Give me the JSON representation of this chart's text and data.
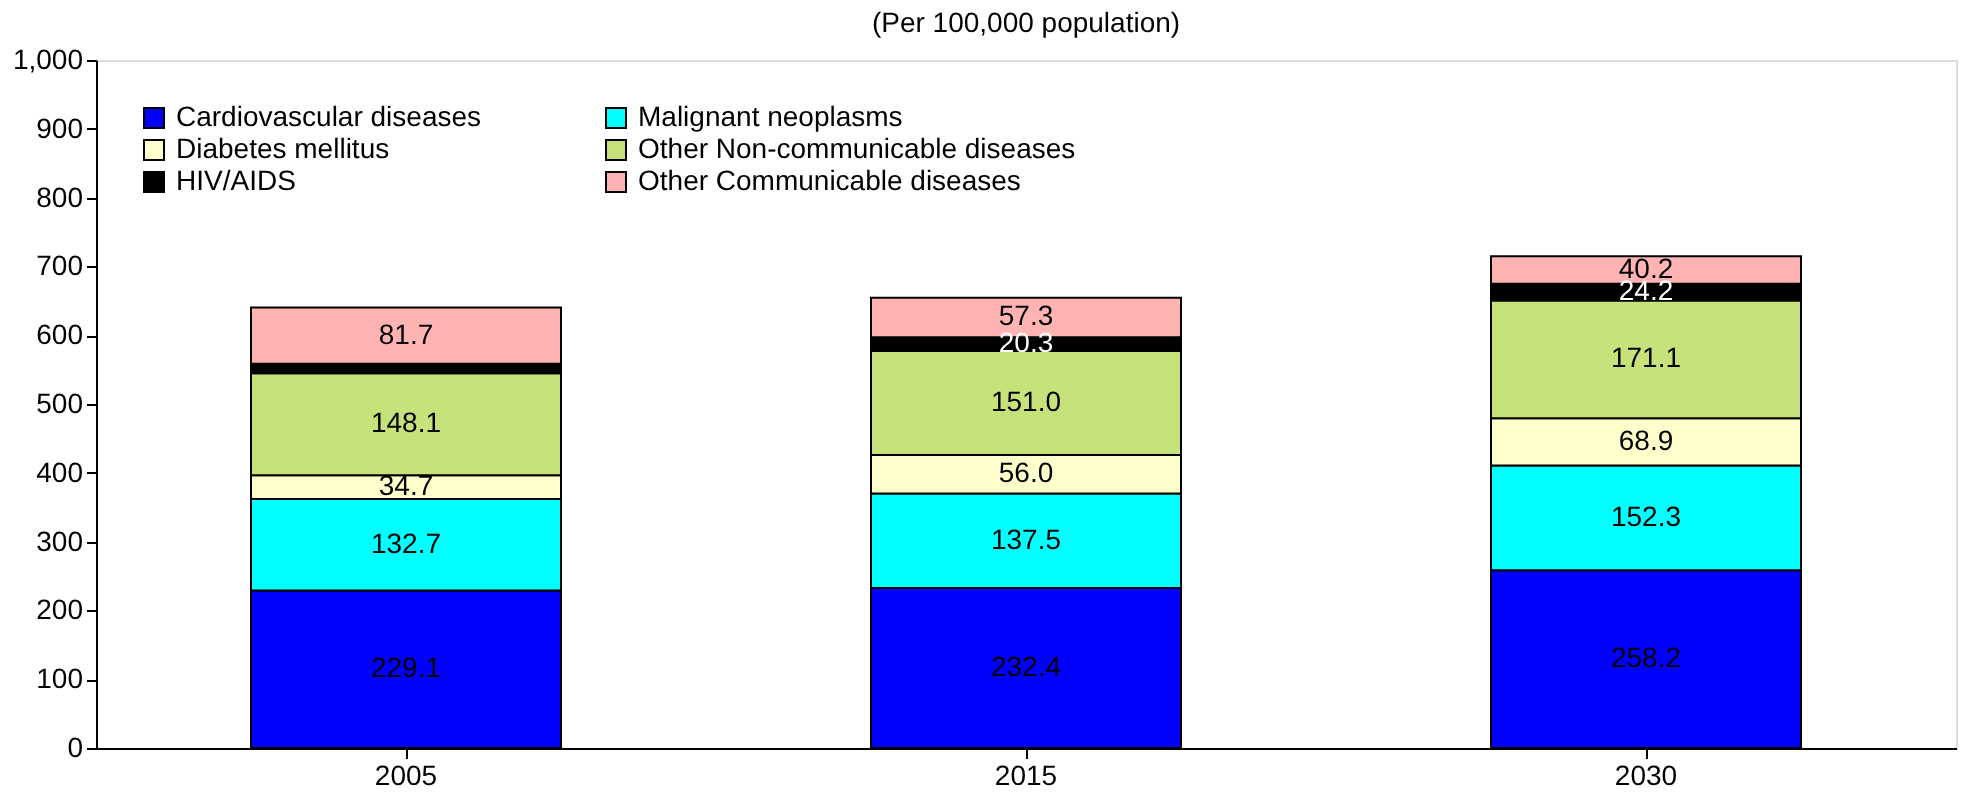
{
  "chart_data": {
    "type": "bar",
    "title": "(Per 100,000 population)",
    "stacked": true,
    "categories": [
      "2005",
      "2015",
      "2030"
    ],
    "series": [
      {
        "name": "Cardiovascular diseases",
        "color": "#0000ff",
        "values": [
          229.1,
          232.4,
          258.2
        ]
      },
      {
        "name": "Malignant neoplasms",
        "color": "#00ffff",
        "values": [
          132.7,
          137.5,
          152.3
        ]
      },
      {
        "name": "Diabetes mellitus",
        "color": "#ffffcc",
        "values": [
          34.7,
          56.0,
          68.9
        ],
        "value_labels": [
          "34.7",
          "56.0",
          "68.9"
        ]
      },
      {
        "name": "Other Non-communicable diseases",
        "color": "#c6e27a",
        "values": [
          148.1,
          151.0,
          171.1
        ],
        "value_labels": [
          "148.1",
          "151.0",
          "171.1"
        ]
      },
      {
        "name": "HIV/AIDS",
        "color": "#000000",
        "values": [
          14,
          20.3,
          24.2
        ],
        "value_labels": [
          null,
          "20.3",
          "24.2"
        ]
      },
      {
        "name": "Other Communicable diseases",
        "color": "#ffb3b3",
        "values": [
          81.7,
          57.3,
          40.2
        ]
      }
    ],
    "ylim": [
      0,
      1000
    ],
    "yticks": [
      0,
      100,
      200,
      300,
      400,
      500,
      600,
      700,
      800,
      900,
      {
        "value": 1000,
        "label": "1,000"
      }
    ],
    "grid": false,
    "legend": "top left",
    "data_labels": true
  }
}
